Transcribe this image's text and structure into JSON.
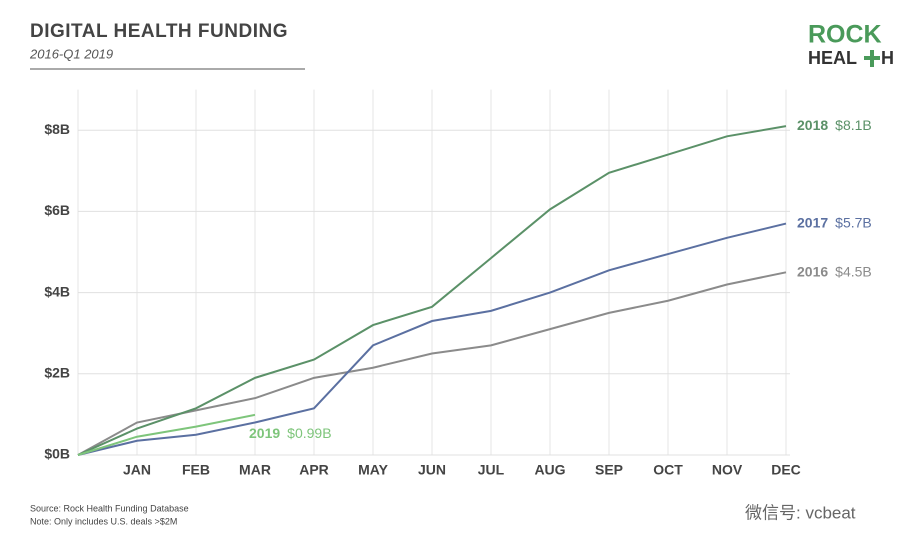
{
  "chart_data": {
    "type": "line",
    "title": "DIGITAL HEALTH FUNDING",
    "subtitle": "2016-Q1 2019",
    "logo": {
      "top": "ROCK",
      "bottom_left": "HEAL",
      "bottom_right": "H"
    },
    "categories": [
      null,
      "JAN",
      "FEB",
      "MAR",
      "APR",
      "MAY",
      "JUN",
      "JUL",
      "AUG",
      "SEP",
      "OCT",
      "NOV",
      "DEC"
    ],
    "series": [
      {
        "name": "2016",
        "color": "#8b8b8b",
        "values": [
          0,
          0.8,
          1.1,
          1.4,
          1.9,
          2.15,
          2.5,
          2.7,
          3.1,
          3.5,
          3.8,
          4.2,
          4.5
        ],
        "value_labels": [
          null,
          null,
          null,
          null,
          null,
          null,
          null,
          null,
          null,
          null,
          null,
          null,
          "$4.5B"
        ]
      },
      {
        "name": "2017",
        "color": "#5b70a1",
        "values": [
          0,
          0.35,
          0.5,
          0.8,
          1.15,
          2.7,
          3.3,
          3.55,
          4.0,
          4.55,
          4.95,
          5.35,
          5.7
        ],
        "value_labels": [
          null,
          null,
          null,
          null,
          null,
          null,
          null,
          null,
          null,
          null,
          null,
          null,
          "$5.7B"
        ]
      },
      {
        "name": "2018",
        "color": "#5b9168",
        "values": [
          0,
          0.65,
          1.15,
          1.9,
          2.35,
          3.2,
          3.65,
          4.85,
          6.05,
          6.95,
          7.4,
          7.85,
          8.1
        ],
        "value_labels": [
          null,
          null,
          null,
          null,
          null,
          null,
          null,
          null,
          null,
          null,
          null,
          null,
          "$8.1B"
        ]
      },
      {
        "name": "2019",
        "color": "#7ec57b",
        "values": [
          0,
          0.45,
          0.7,
          0.99,
          null,
          null,
          null,
          null,
          null,
          null,
          null,
          null,
          null
        ],
        "value_labels": [
          null,
          null,
          null,
          "$0.99B",
          null,
          null,
          null,
          null,
          null,
          null,
          null,
          null,
          null
        ]
      }
    ],
    "ylim": [
      0,
      9
    ],
    "yticks": [
      {
        "value": 0,
        "label": "$0B"
      },
      {
        "value": 2,
        "label": "$2B"
      },
      {
        "value": 4,
        "label": "$4B"
      },
      {
        "value": 6,
        "label": "$6B"
      },
      {
        "value": 8,
        "label": "$8B"
      }
    ],
    "grid": true,
    "source": "Source: Rock Health Funding Database",
    "note": "Note: Only includes U.S. deals >$2M",
    "watermark": "微信号: vcbeat"
  }
}
